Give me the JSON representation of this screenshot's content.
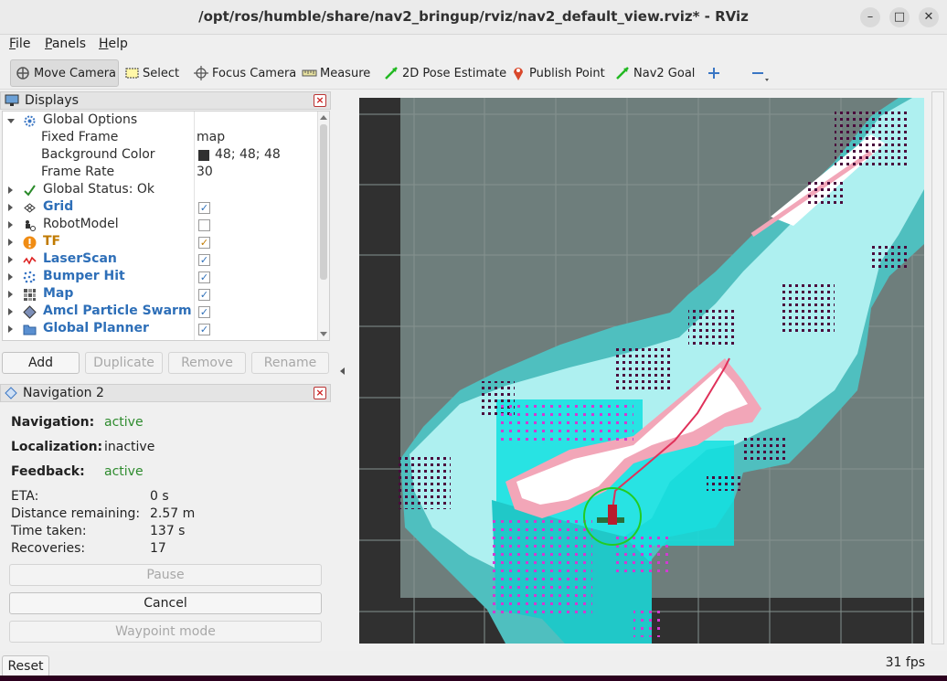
{
  "window": {
    "title": "/opt/ros/humble/share/nav2_bringup/rviz/nav2_default_view.rviz* - RViz",
    "minimize_glyph": "–",
    "maximize_glyph": "□",
    "close_glyph": "✕"
  },
  "menubar": [
    "File",
    "Panels",
    "Help"
  ],
  "toolbar": {
    "tools": [
      {
        "label": "Move Camera",
        "icon": "move-camera-icon",
        "active": true
      },
      {
        "label": "Select",
        "icon": "select-icon"
      },
      {
        "label": "Focus Camera",
        "icon": "focus-camera-icon"
      },
      {
        "label": "Measure",
        "icon": "measure-icon"
      },
      {
        "label": "2D Pose Estimate",
        "icon": "pose-estimate-icon"
      },
      {
        "label": "Publish Point",
        "icon": "publish-point-icon"
      },
      {
        "label": "Nav2 Goal",
        "icon": "nav2-goal-icon"
      }
    ],
    "add_tool_icon": "plus-icon",
    "remove_tool_icon": "minus-icon"
  },
  "displays": {
    "header": "Displays",
    "global_options": {
      "label": "Global Options",
      "properties": [
        {
          "name": "Fixed Frame",
          "value": "map"
        },
        {
          "name": "Background Color",
          "value": "48; 48; 48",
          "swatch": "#303030"
        },
        {
          "name": "Frame Rate",
          "value": "30"
        }
      ]
    },
    "items": [
      {
        "label": "Global Status: Ok",
        "icon": "check-icon",
        "style": "plain",
        "checkbox": null
      },
      {
        "label": "Grid",
        "icon": "grid-icon",
        "style": "blue",
        "checkbox": "✓"
      },
      {
        "label": "RobotModel",
        "icon": "robot-model-icon",
        "style": "plain",
        "checkbox": ""
      },
      {
        "label": "TF",
        "icon": "warning-icon",
        "style": "orange",
        "checkbox": "✓"
      },
      {
        "label": "LaserScan",
        "icon": "laser-scan-icon",
        "style": "blue",
        "checkbox": "✓"
      },
      {
        "label": "Bumper Hit",
        "icon": "bumper-hit-icon",
        "style": "blue",
        "checkbox": "✓"
      },
      {
        "label": "Map",
        "icon": "map-icon",
        "style": "blue",
        "checkbox": "✓"
      },
      {
        "label": "Amcl Particle Swarm",
        "icon": "particle-swarm-icon",
        "style": "blue",
        "checkbox": "✓"
      },
      {
        "label": "Global Planner",
        "icon": "folder-icon",
        "style": "blue",
        "checkbox": "✓"
      }
    ],
    "buttons": {
      "add": "Add",
      "duplicate": "Duplicate",
      "remove": "Remove",
      "rename": "Rename"
    }
  },
  "navigation": {
    "header": "Navigation 2",
    "navigation_label": "Navigation:",
    "navigation_value": "active",
    "localization_label": "Localization:",
    "localization_value": "inactive",
    "feedback_label": "Feedback:",
    "feedback_value": "active",
    "stats": [
      {
        "label": "ETA:",
        "value": "0 s"
      },
      {
        "label": "Distance remaining:",
        "value": "2.57 m"
      },
      {
        "label": "Time taken:",
        "value": "137 s"
      },
      {
        "label": "Recoveries:",
        "value": "17"
      }
    ],
    "pause_label": "Pause",
    "cancel_label": "Cancel",
    "waypoint_label": "Waypoint mode"
  },
  "status": {
    "reset_label": "Reset",
    "fps": "31 fps"
  },
  "colors": {
    "map_free": "#ffffff",
    "map_unknown": "#6e7e7c",
    "costmap_inflation": "#4fbfbf",
    "costmap_light": "#aef0f0",
    "obstacle": "#4a0a3c",
    "path": "#e0315a",
    "robot_circle": "#22cc22",
    "background": "#303030"
  }
}
